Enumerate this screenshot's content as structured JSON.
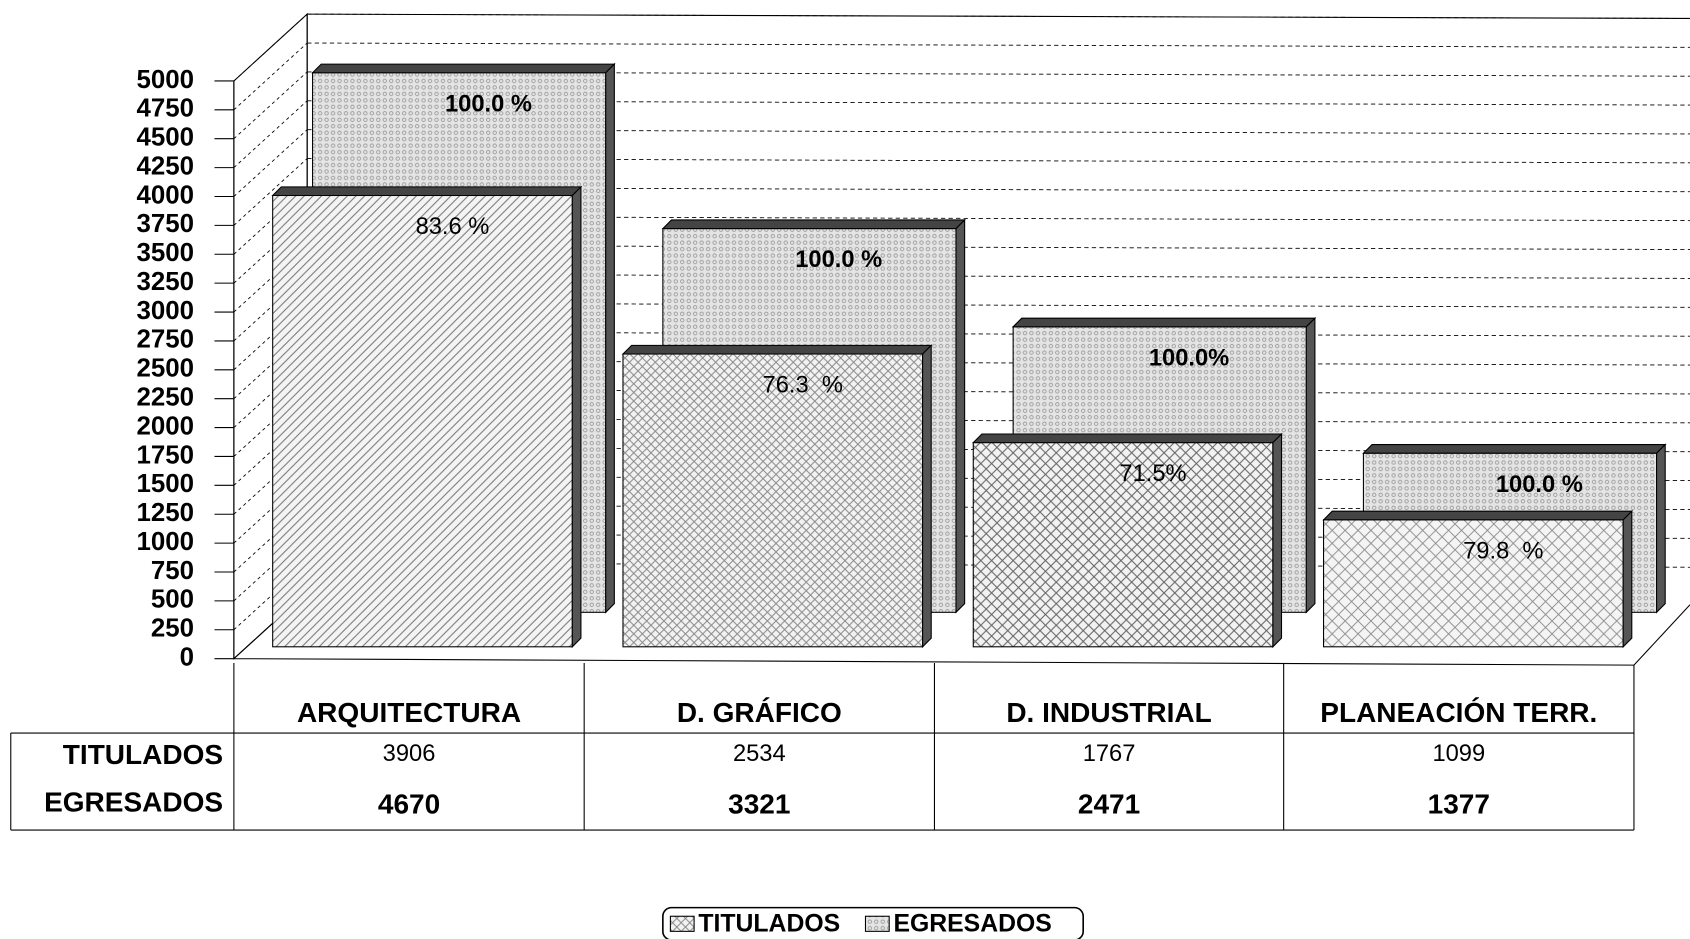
{
  "chart_data": {
    "type": "bar3d",
    "categories": [
      "ARQUITECTURA",
      "D. GRÁFICO",
      "D. INDUSTRIAL",
      "PLANEACIÓN TERR."
    ],
    "series": [
      {
        "name": "TITULADOS",
        "color": "#bdbdbd",
        "values": [
          3906,
          2534,
          1767,
          1099
        ],
        "percent_labels": [
          "83.6 %",
          "76.3  %",
          "71.5%",
          "79.8  %"
        ]
      },
      {
        "name": "EGRESADOS",
        "color": "#d6d6d6",
        "values": [
          4670,
          3321,
          2471,
          1377
        ],
        "percent_labels": [
          "100.0 %",
          "100.0 %",
          "100.0%",
          "100.0 %"
        ]
      }
    ],
    "ylim": [
      0,
      5000
    ],
    "yticks": [
      0,
      250,
      500,
      750,
      1000,
      1250,
      1500,
      1750,
      2000,
      2250,
      2500,
      2750,
      3000,
      3250,
      3500,
      3750,
      4000,
      4250,
      4500,
      4750,
      5000
    ],
    "grid": true,
    "legend": "bottom",
    "data_table": true
  }
}
